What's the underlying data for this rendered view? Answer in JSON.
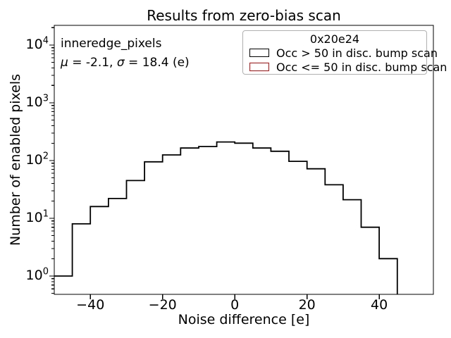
{
  "title": "Results from zero-bias scan",
  "annotation": {
    "line1": "inneredge_pixels",
    "mu_symbol": "μ",
    "mu_rest": " = -2.1, ",
    "sigma_symbol": "σ",
    "sigma_rest": " = 18.4 (e)"
  },
  "legend": {
    "title": "0x20e24",
    "entries": [
      {
        "label": "Occ > 50 in disc. bump scan",
        "color": "#000000"
      },
      {
        "label": "Occ <= 50 in disc. bump scan",
        "color": "#ff0000"
      }
    ]
  },
  "chart_data": {
    "type": "step-histogram",
    "title": "Results from zero-bias scan",
    "xlabel": "Noise difference [e]",
    "ylabel": "Number of enabled pixels",
    "x_scale": "linear",
    "y_scale": "log",
    "xlim": [
      -50,
      55
    ],
    "ylim": [
      0.482,
      21930
    ],
    "x_ticks": [
      -40,
      -20,
      0,
      20,
      40
    ],
    "x_tick_labels": [
      "−40",
      "−20",
      "0",
      "20",
      "40"
    ],
    "y_tick_exponents": [
      0,
      1,
      2,
      3,
      4
    ],
    "grid": false,
    "legend_position": "upper right",
    "detector_label": "inneredge_pixels",
    "stats": {
      "mu": -2.1,
      "sigma": 18.4,
      "unit": "e"
    },
    "bin_edges": [
      -50,
      -45,
      -40,
      -35,
      -30,
      -25,
      -20,
      -15,
      -10,
      -5,
      0,
      5,
      10,
      15,
      20,
      25,
      30,
      35,
      40,
      45
    ],
    "series": [
      {
        "name": "Occ > 50 in disc. bump scan",
        "color": "#000000",
        "counts": [
          1,
          8,
          16,
          22,
          45,
          95,
          125,
          165,
          175,
          210,
          200,
          165,
          145,
          97,
          72,
          38,
          21,
          7,
          2
        ]
      },
      {
        "name": "Occ <= 50 in disc. bump scan",
        "color": "#ff0000",
        "counts": []
      }
    ]
  }
}
